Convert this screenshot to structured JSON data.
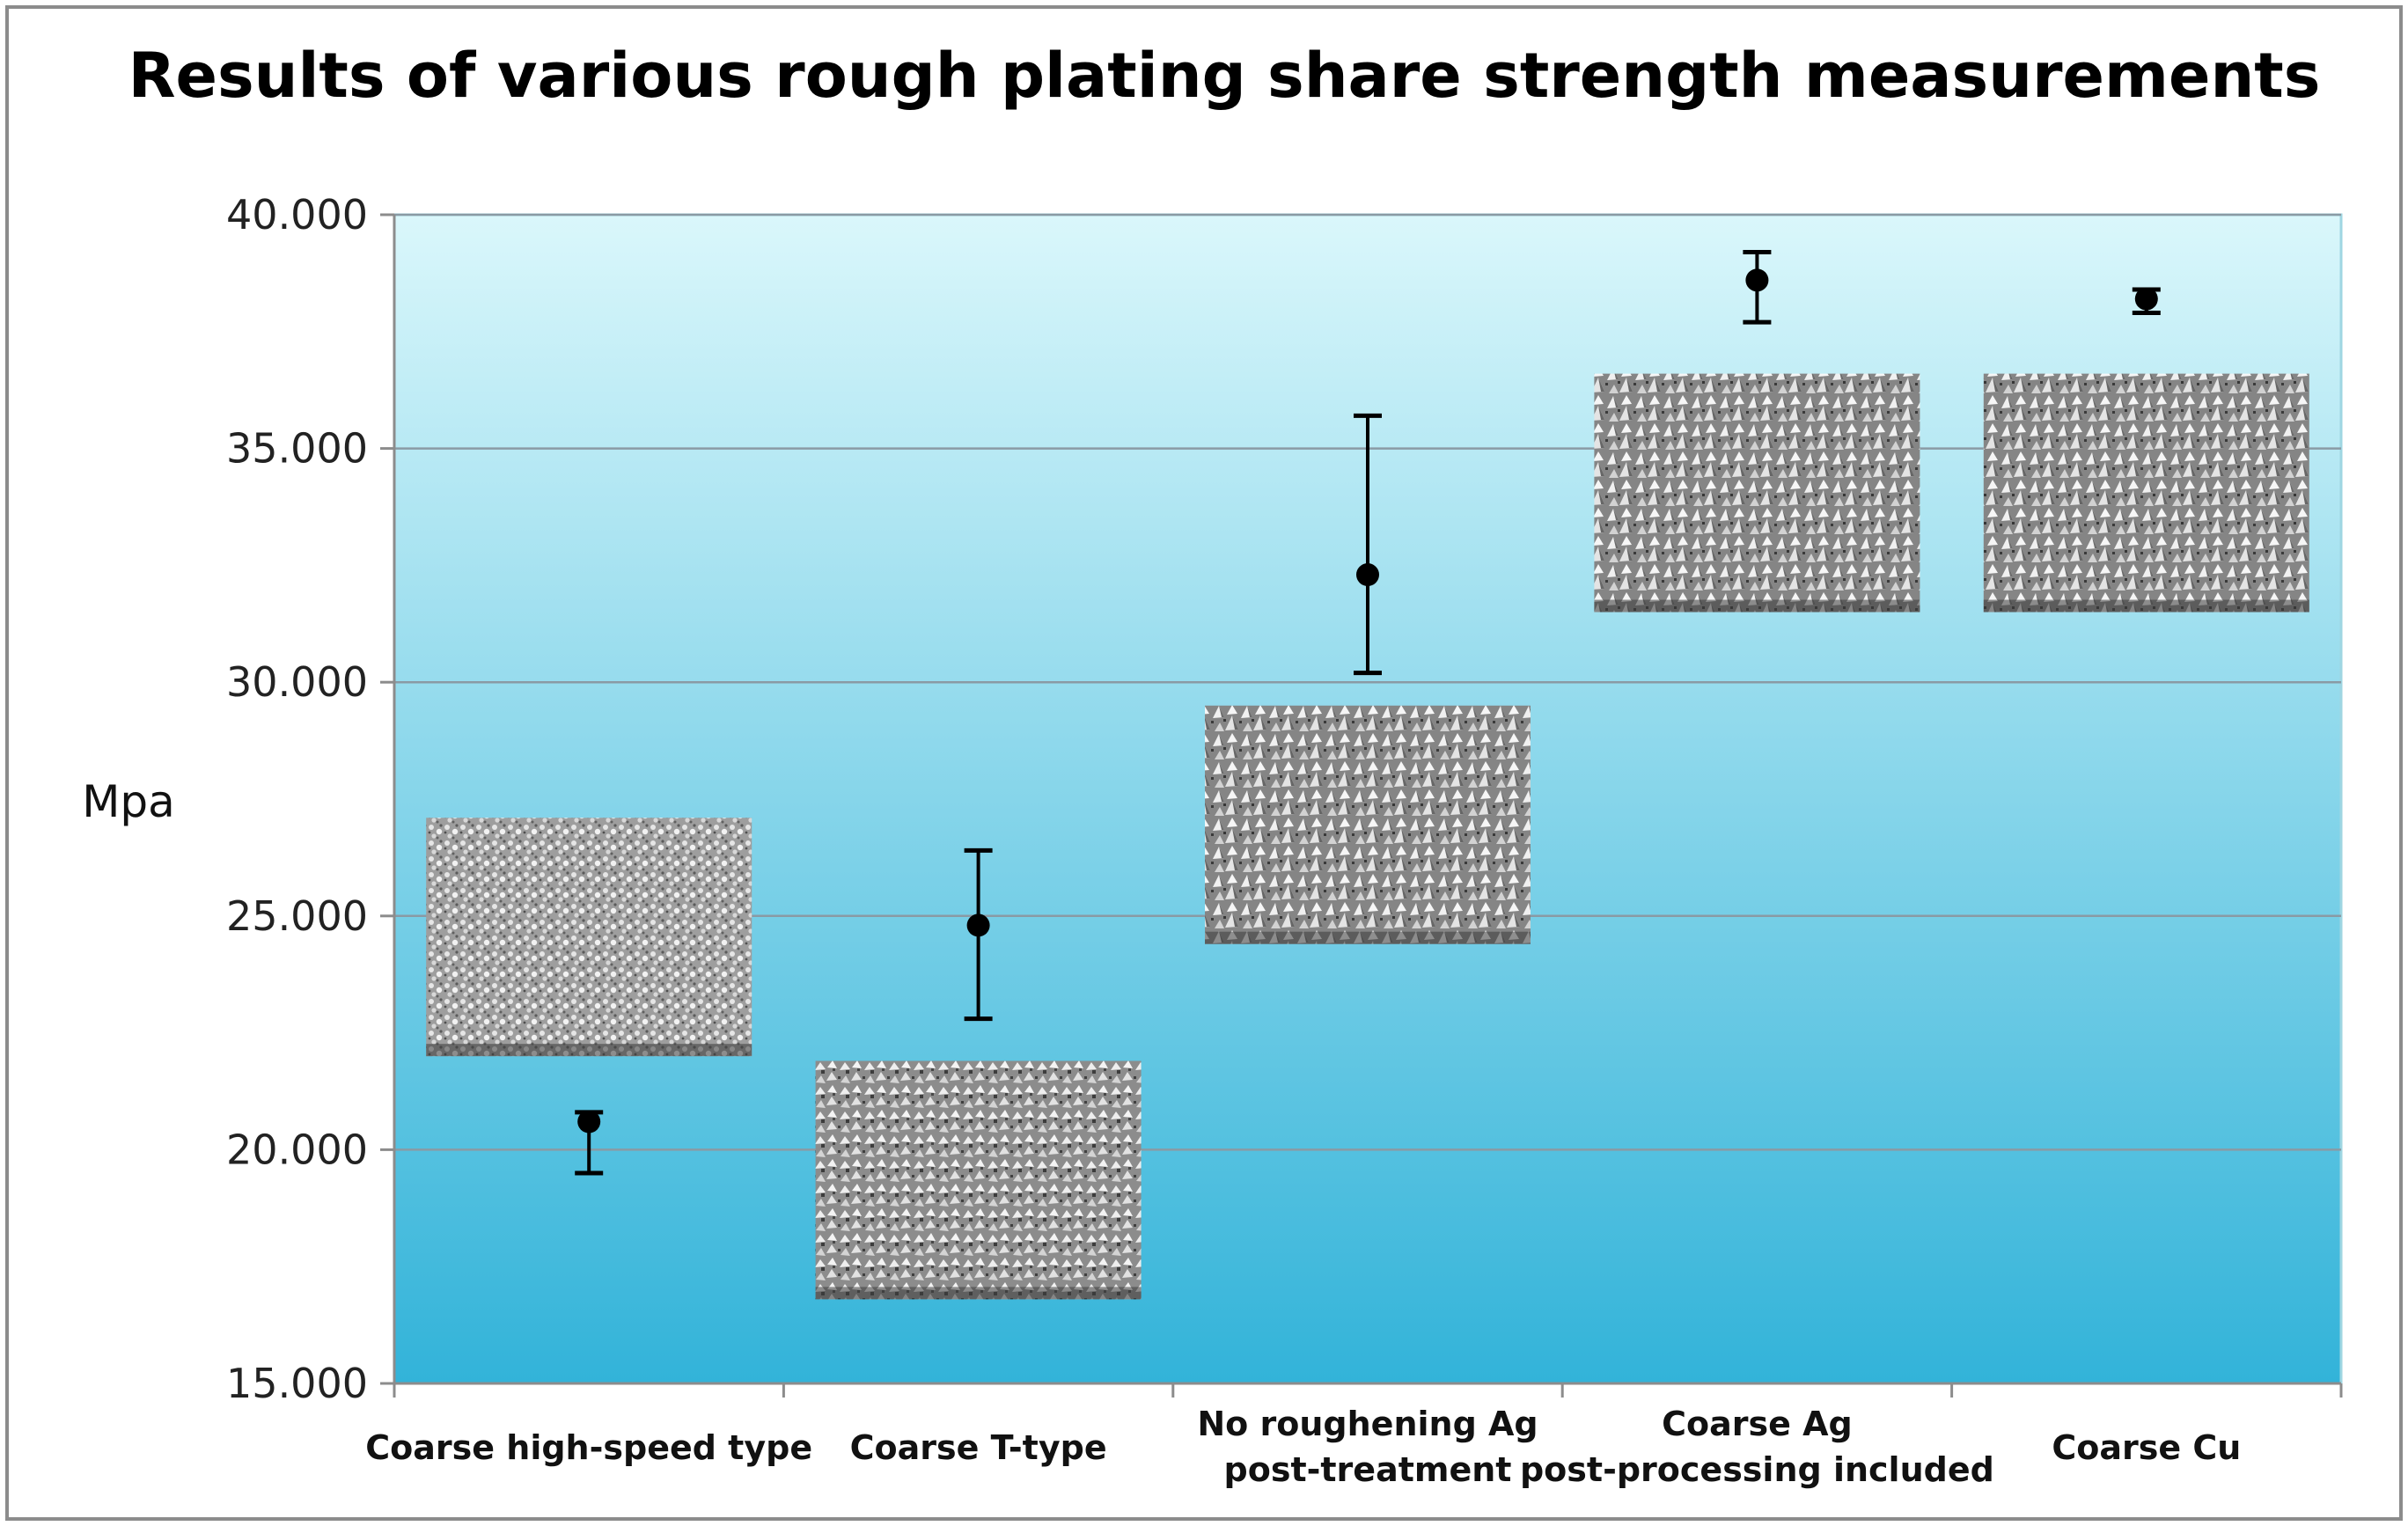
{
  "chart_data": {
    "type": "scatter",
    "title": "Results of various rough plating share strength measurements",
    "xlabel": "",
    "ylabel": "Mpa",
    "ylim": [
      15,
      40
    ],
    "yticks": [
      "15.000",
      "20.000",
      "25.000",
      "30.000",
      "35.000",
      "40.000"
    ],
    "ytick_values": [
      15,
      20,
      25,
      30,
      35,
      40
    ],
    "grid": true,
    "categories": [
      [
        "Coarse high-speed type"
      ],
      [
        "Coarse T-type"
      ],
      [
        "No roughening Ag",
        "post-treatment"
      ],
      [
        "Coarse Ag",
        "post-processing included"
      ],
      [
        "Coarse Cu"
      ]
    ],
    "series": [
      {
        "values": [
          20.6,
          24.8,
          32.3,
          38.6,
          38.2
        ],
        "error_low": [
          19.5,
          22.8,
          30.2,
          37.7,
          37.9
        ],
        "error_high": [
          20.8,
          26.4,
          35.7,
          39.2,
          38.4
        ]
      }
    ],
    "insets": [
      {
        "category": 0,
        "y_top": 27.1,
        "y_bottom": 22.0,
        "texture": "fine-grain"
      },
      {
        "category": 1,
        "y_top": 21.9,
        "y_bottom": 16.8,
        "texture": "granular"
      },
      {
        "category": 2,
        "y_top": 29.5,
        "y_bottom": 24.4,
        "texture": "spiky"
      },
      {
        "category": 3,
        "y_top": 36.6,
        "y_bottom": 31.5,
        "texture": "spiky"
      },
      {
        "category": 4,
        "y_top": 36.6,
        "y_bottom": 31.5,
        "texture": "spiky"
      }
    ],
    "colors": {
      "plot_top": "#daf7fb",
      "plot_bottom": "#32b3d9",
      "grid": "#8a9aa4",
      "marker": "#000000"
    }
  }
}
